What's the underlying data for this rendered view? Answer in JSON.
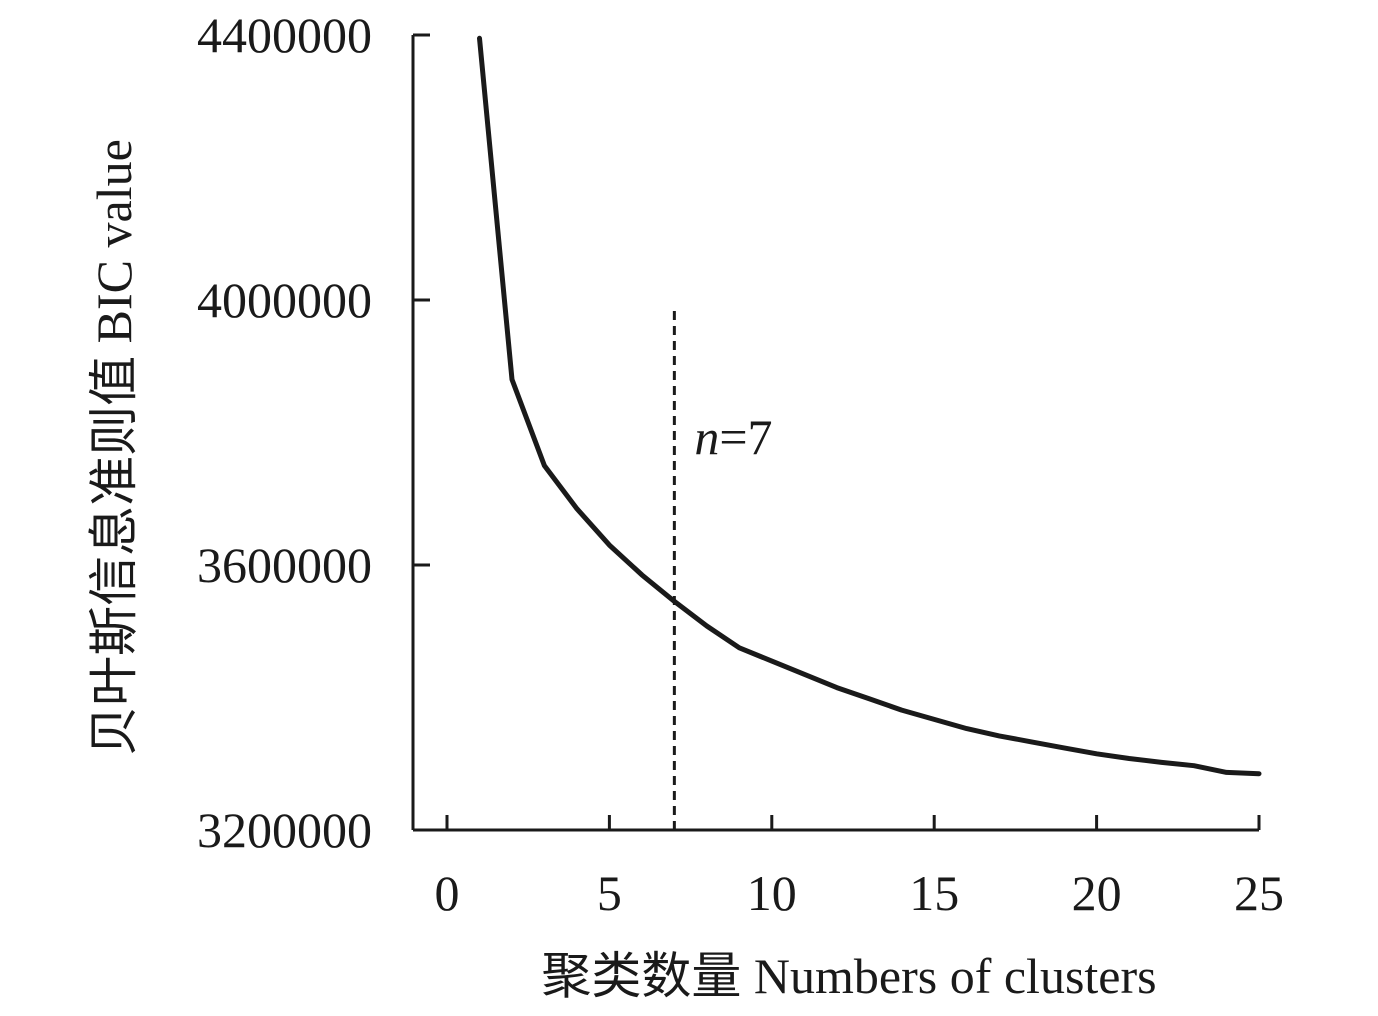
{
  "chart_data": {
    "type": "line",
    "title": "",
    "xlabel": "聚类数量 Numbers of clusters",
    "ylabel": "贝叶斯信息准则值 BIC value",
    "xlim": [
      0,
      25
    ],
    "ylim": [
      3200000,
      4400000
    ],
    "x_ticks": [
      0,
      5,
      10,
      15,
      20,
      25
    ],
    "x_tick_labels": [
      "0",
      "5",
      "10",
      "15",
      "20",
      "25"
    ],
    "y_ticks": [
      3200000,
      3600000,
      4000000,
      4400000
    ],
    "y_tick_labels": [
      "3200000",
      "3600000",
      "4000000",
      "4400000"
    ],
    "grid": false,
    "legend": "none",
    "series": [
      {
        "x": [
          1,
          2,
          3,
          4,
          5,
          6,
          7,
          8,
          9,
          10,
          11,
          12,
          13,
          14,
          15,
          16,
          17,
          18,
          19,
          20,
          21,
          22,
          23,
          24,
          25
        ],
        "values": [
          4395000,
          3880000,
          3750000,
          3685000,
          3630000,
          3585000,
          3545000,
          3508000,
          3475000,
          3455000,
          3435000,
          3415000,
          3398000,
          3381000,
          3367000,
          3353000,
          3342000,
          3333000,
          3324000,
          3315000,
          3308000,
          3302000,
          3297000,
          3287000,
          3285000
        ],
        "color": "#1a1a1a"
      }
    ],
    "annotations": [
      {
        "type": "vline",
        "x": 7,
        "y_top": 3985000,
        "style": "dashed",
        "label_italic": "n",
        "label_rest": "=7",
        "label_y": 3795000
      }
    ]
  }
}
